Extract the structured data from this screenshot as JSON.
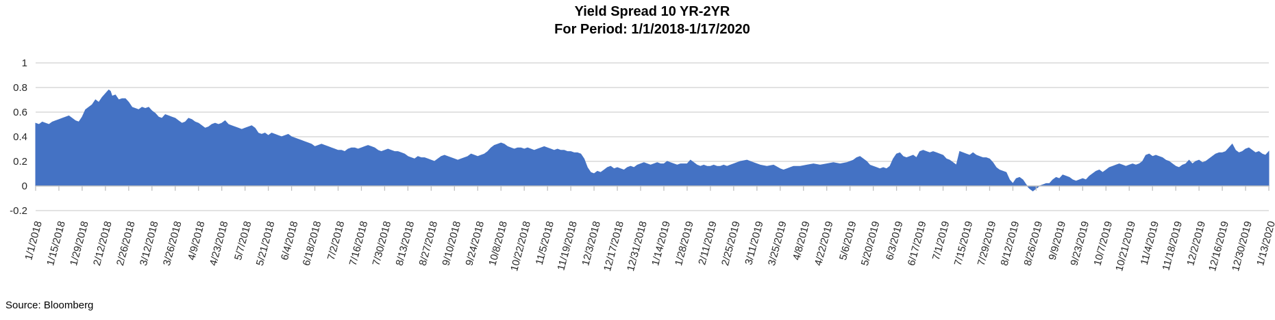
{
  "title": {
    "line1": "Yield Spread 10 YR-2YR",
    "line2": "For Period: 1/1/2018-1/17/2020"
  },
  "footer": {
    "source_label": "Source: Bloomberg"
  },
  "chart_data": {
    "type": "area",
    "title": "Yield Spread 10 YR-2YR For Period: 1/1/2018-1/17/2020",
    "fill_color": "#4472C4",
    "gridline_color": "#D8D8D8",
    "axis_color": "#BFBFBF",
    "label_color": "#262626",
    "grid": true,
    "legend": false,
    "y_axis": {
      "min": -0.2,
      "max": 1.0,
      "tick_step": 0.2,
      "tick_values": [
        1,
        0.8,
        0.6,
        0.4,
        0.2,
        0,
        -0.2
      ],
      "tick_labels": [
        "1",
        "0.8",
        "0.6",
        "0.4",
        "0.2",
        "0",
        "-0.2"
      ],
      "gridline_values": [
        1,
        0.8,
        0.6,
        0.4,
        0.2,
        -0.2
      ]
    },
    "x_axis": {
      "start_label": "1/1/2018",
      "end_label": "1/13/2020",
      "tick_interval_days": 14,
      "range_days": [
        0,
        742
      ],
      "tick_labels": [
        "1/1/2018",
        "1/15/2018",
        "1/29/2018",
        "2/12/2018",
        "2/26/2018",
        "3/12/2018",
        "3/26/2018",
        "4/9/2018",
        "4/23/2018",
        "5/7/2018",
        "5/21/2018",
        "6/4/2018",
        "6/18/2018",
        "7/2/2018",
        "7/16/2018",
        "7/30/2018",
        "8/13/2018",
        "8/27/2018",
        "9/10/2018",
        "9/24/2018",
        "10/8/2018",
        "10/22/2018",
        "11/5/2018",
        "11/19/2018",
        "12/3/2018",
        "12/17/2018",
        "12/31/2018",
        "1/14/2019",
        "1/28/2019",
        "2/11/2019",
        "2/25/2019",
        "3/11/2019",
        "3/25/2019",
        "4/8/2019",
        "4/22/2019",
        "5/6/2019",
        "5/20/2019",
        "6/3/2019",
        "6/17/2019",
        "7/1/2019",
        "7/15/2019",
        "7/29/2019",
        "8/12/2019",
        "8/26/2019",
        "9/9/2019",
        "9/23/2019",
        "10/7/2019",
        "10/21/2019",
        "11/4/2019",
        "11/18/2019",
        "12/2/2019",
        "12/16/2019",
        "12/30/2019",
        "1/13/2020"
      ]
    },
    "points": [
      [
        0,
        0.51
      ],
      [
        2,
        0.5
      ],
      [
        4,
        0.52
      ],
      [
        6,
        0.51
      ],
      [
        8,
        0.5
      ],
      [
        10,
        0.52
      ],
      [
        12,
        0.53
      ],
      [
        14,
        0.54
      ],
      [
        16,
        0.55
      ],
      [
        18,
        0.56
      ],
      [
        20,
        0.57
      ],
      [
        22,
        0.55
      ],
      [
        24,
        0.53
      ],
      [
        26,
        0.52
      ],
      [
        28,
        0.56
      ],
      [
        30,
        0.62
      ],
      [
        32,
        0.64
      ],
      [
        34,
        0.66
      ],
      [
        36,
        0.7
      ],
      [
        38,
        0.68
      ],
      [
        40,
        0.72
      ],
      [
        42,
        0.75
      ],
      [
        44,
        0.78
      ],
      [
        45,
        0.77
      ],
      [
        46,
        0.73
      ],
      [
        48,
        0.74
      ],
      [
        50,
        0.7
      ],
      [
        52,
        0.71
      ],
      [
        54,
        0.71
      ],
      [
        56,
        0.68
      ],
      [
        58,
        0.64
      ],
      [
        60,
        0.63
      ],
      [
        62,
        0.62
      ],
      [
        64,
        0.64
      ],
      [
        66,
        0.63
      ],
      [
        68,
        0.64
      ],
      [
        70,
        0.61
      ],
      [
        72,
        0.59
      ],
      [
        74,
        0.56
      ],
      [
        76,
        0.55
      ],
      [
        78,
        0.58
      ],
      [
        80,
        0.57
      ],
      [
        82,
        0.56
      ],
      [
        84,
        0.55
      ],
      [
        86,
        0.53
      ],
      [
        88,
        0.51
      ],
      [
        90,
        0.52
      ],
      [
        92,
        0.55
      ],
      [
        94,
        0.54
      ],
      [
        96,
        0.52
      ],
      [
        98,
        0.51
      ],
      [
        100,
        0.49
      ],
      [
        102,
        0.47
      ],
      [
        104,
        0.48
      ],
      [
        106,
        0.5
      ],
      [
        108,
        0.51
      ],
      [
        110,
        0.5
      ],
      [
        112,
        0.51
      ],
      [
        114,
        0.53
      ],
      [
        116,
        0.5
      ],
      [
        118,
        0.49
      ],
      [
        120,
        0.48
      ],
      [
        122,
        0.47
      ],
      [
        124,
        0.46
      ],
      [
        126,
        0.47
      ],
      [
        128,
        0.48
      ],
      [
        130,
        0.49
      ],
      [
        132,
        0.47
      ],
      [
        134,
        0.43
      ],
      [
        136,
        0.42
      ],
      [
        138,
        0.43
      ],
      [
        140,
        0.41
      ],
      [
        142,
        0.43
      ],
      [
        144,
        0.42
      ],
      [
        146,
        0.41
      ],
      [
        148,
        0.4
      ],
      [
        150,
        0.41
      ],
      [
        152,
        0.42
      ],
      [
        154,
        0.4
      ],
      [
        156,
        0.39
      ],
      [
        158,
        0.38
      ],
      [
        160,
        0.37
      ],
      [
        162,
        0.36
      ],
      [
        164,
        0.35
      ],
      [
        166,
        0.34
      ],
      [
        168,
        0.32
      ],
      [
        170,
        0.33
      ],
      [
        172,
        0.34
      ],
      [
        174,
        0.33
      ],
      [
        176,
        0.32
      ],
      [
        178,
        0.31
      ],
      [
        180,
        0.3
      ],
      [
        182,
        0.29
      ],
      [
        184,
        0.29
      ],
      [
        186,
        0.28
      ],
      [
        188,
        0.3
      ],
      [
        190,
        0.31
      ],
      [
        192,
        0.31
      ],
      [
        194,
        0.3
      ],
      [
        196,
        0.31
      ],
      [
        198,
        0.32
      ],
      [
        200,
        0.33
      ],
      [
        202,
        0.32
      ],
      [
        204,
        0.31
      ],
      [
        206,
        0.29
      ],
      [
        208,
        0.28
      ],
      [
        210,
        0.29
      ],
      [
        212,
        0.3
      ],
      [
        214,
        0.29
      ],
      [
        216,
        0.28
      ],
      [
        218,
        0.28
      ],
      [
        220,
        0.27
      ],
      [
        222,
        0.26
      ],
      [
        224,
        0.24
      ],
      [
        226,
        0.23
      ],
      [
        228,
        0.22
      ],
      [
        230,
        0.24
      ],
      [
        232,
        0.23
      ],
      [
        234,
        0.23
      ],
      [
        236,
        0.22
      ],
      [
        238,
        0.21
      ],
      [
        240,
        0.2
      ],
      [
        242,
        0.22
      ],
      [
        244,
        0.24
      ],
      [
        246,
        0.25
      ],
      [
        248,
        0.24
      ],
      [
        250,
        0.23
      ],
      [
        252,
        0.22
      ],
      [
        254,
        0.21
      ],
      [
        256,
        0.22
      ],
      [
        258,
        0.23
      ],
      [
        260,
        0.24
      ],
      [
        262,
        0.26
      ],
      [
        264,
        0.25
      ],
      [
        266,
        0.24
      ],
      [
        268,
        0.25
      ],
      [
        270,
        0.26
      ],
      [
        272,
        0.28
      ],
      [
        274,
        0.31
      ],
      [
        276,
        0.33
      ],
      [
        278,
        0.34
      ],
      [
        280,
        0.35
      ],
      [
        282,
        0.34
      ],
      [
        284,
        0.32
      ],
      [
        286,
        0.31
      ],
      [
        288,
        0.3
      ],
      [
        290,
        0.31
      ],
      [
        292,
        0.31
      ],
      [
        294,
        0.3
      ],
      [
        296,
        0.31
      ],
      [
        298,
        0.3
      ],
      [
        300,
        0.29
      ],
      [
        302,
        0.3
      ],
      [
        304,
        0.31
      ],
      [
        306,
        0.32
      ],
      [
        308,
        0.31
      ],
      [
        310,
        0.3
      ],
      [
        312,
        0.29
      ],
      [
        314,
        0.3
      ],
      [
        316,
        0.29
      ],
      [
        318,
        0.29
      ],
      [
        320,
        0.28
      ],
      [
        322,
        0.28
      ],
      [
        324,
        0.27
      ],
      [
        326,
        0.27
      ],
      [
        328,
        0.26
      ],
      [
        330,
        0.22
      ],
      [
        332,
        0.15
      ],
      [
        334,
        0.11
      ],
      [
        336,
        0.1
      ],
      [
        338,
        0.12
      ],
      [
        340,
        0.11
      ],
      [
        342,
        0.13
      ],
      [
        344,
        0.15
      ],
      [
        346,
        0.16
      ],
      [
        348,
        0.14
      ],
      [
        350,
        0.15
      ],
      [
        352,
        0.14
      ],
      [
        354,
        0.13
      ],
      [
        356,
        0.15
      ],
      [
        358,
        0.16
      ],
      [
        360,
        0.15
      ],
      [
        362,
        0.17
      ],
      [
        364,
        0.18
      ],
      [
        366,
        0.19
      ],
      [
        368,
        0.18
      ],
      [
        370,
        0.17
      ],
      [
        372,
        0.18
      ],
      [
        374,
        0.19
      ],
      [
        376,
        0.18
      ],
      [
        378,
        0.18
      ],
      [
        380,
        0.2
      ],
      [
        382,
        0.19
      ],
      [
        384,
        0.18
      ],
      [
        386,
        0.17
      ],
      [
        388,
        0.18
      ],
      [
        390,
        0.18
      ],
      [
        392,
        0.18
      ],
      [
        394,
        0.21
      ],
      [
        396,
        0.19
      ],
      [
        398,
        0.17
      ],
      [
        400,
        0.16
      ],
      [
        402,
        0.17
      ],
      [
        404,
        0.16
      ],
      [
        406,
        0.16
      ],
      [
        408,
        0.17
      ],
      [
        410,
        0.16
      ],
      [
        412,
        0.16
      ],
      [
        414,
        0.17
      ],
      [
        416,
        0.16
      ],
      [
        418,
        0.17
      ],
      [
        420,
        0.18
      ],
      [
        424,
        0.2
      ],
      [
        428,
        0.21
      ],
      [
        432,
        0.19
      ],
      [
        436,
        0.17
      ],
      [
        440,
        0.16
      ],
      [
        444,
        0.17
      ],
      [
        448,
        0.14
      ],
      [
        450,
        0.13
      ],
      [
        452,
        0.14
      ],
      [
        454,
        0.15
      ],
      [
        456,
        0.16
      ],
      [
        460,
        0.16
      ],
      [
        464,
        0.17
      ],
      [
        468,
        0.18
      ],
      [
        472,
        0.17
      ],
      [
        476,
        0.18
      ],
      [
        480,
        0.19
      ],
      [
        484,
        0.18
      ],
      [
        488,
        0.19
      ],
      [
        492,
        0.21
      ],
      [
        494,
        0.23
      ],
      [
        496,
        0.24
      ],
      [
        498,
        0.22
      ],
      [
        500,
        0.2
      ],
      [
        502,
        0.17
      ],
      [
        504,
        0.16
      ],
      [
        506,
        0.15
      ],
      [
        508,
        0.14
      ],
      [
        510,
        0.15
      ],
      [
        512,
        0.14
      ],
      [
        514,
        0.16
      ],
      [
        516,
        0.22
      ],
      [
        518,
        0.26
      ],
      [
        520,
        0.27
      ],
      [
        522,
        0.24
      ],
      [
        524,
        0.23
      ],
      [
        526,
        0.24
      ],
      [
        528,
        0.25
      ],
      [
        530,
        0.23
      ],
      [
        532,
        0.28
      ],
      [
        534,
        0.29
      ],
      [
        536,
        0.28
      ],
      [
        538,
        0.27
      ],
      [
        540,
        0.28
      ],
      [
        542,
        0.27
      ],
      [
        544,
        0.26
      ],
      [
        546,
        0.25
      ],
      [
        548,
        0.22
      ],
      [
        550,
        0.21
      ],
      [
        552,
        0.19
      ],
      [
        554,
        0.17
      ],
      [
        556,
        0.28
      ],
      [
        558,
        0.27
      ],
      [
        560,
        0.26
      ],
      [
        562,
        0.25
      ],
      [
        564,
        0.27
      ],
      [
        566,
        0.25
      ],
      [
        568,
        0.24
      ],
      [
        570,
        0.23
      ],
      [
        572,
        0.23
      ],
      [
        574,
        0.22
      ],
      [
        576,
        0.19
      ],
      [
        578,
        0.15
      ],
      [
        580,
        0.13
      ],
      [
        582,
        0.12
      ],
      [
        584,
        0.11
      ],
      [
        586,
        0.05
      ],
      [
        588,
        0.02
      ],
      [
        590,
        0.06
      ],
      [
        592,
        0.07
      ],
      [
        594,
        0.05
      ],
      [
        596,
        0.01
      ],
      [
        598,
        -0.02
      ],
      [
        600,
        -0.04
      ],
      [
        602,
        -0.02
      ],
      [
        604,
        0
      ],
      [
        606,
        0.01
      ],
      [
        608,
        0.02
      ],
      [
        610,
        0.02
      ],
      [
        612,
        0.05
      ],
      [
        614,
        0.07
      ],
      [
        616,
        0.06
      ],
      [
        618,
        0.09
      ],
      [
        620,
        0.08
      ],
      [
        622,
        0.07
      ],
      [
        624,
        0.05
      ],
      [
        626,
        0.04
      ],
      [
        628,
        0.05
      ],
      [
        630,
        0.06
      ],
      [
        632,
        0.05
      ],
      [
        634,
        0.08
      ],
      [
        636,
        0.1
      ],
      [
        638,
        0.12
      ],
      [
        640,
        0.13
      ],
      [
        642,
        0.11
      ],
      [
        644,
        0.13
      ],
      [
        646,
        0.15
      ],
      [
        648,
        0.16
      ],
      [
        650,
        0.17
      ],
      [
        652,
        0.18
      ],
      [
        654,
        0.17
      ],
      [
        656,
        0.16
      ],
      [
        658,
        0.17
      ],
      [
        660,
        0.18
      ],
      [
        662,
        0.17
      ],
      [
        664,
        0.18
      ],
      [
        666,
        0.2
      ],
      [
        668,
        0.25
      ],
      [
        670,
        0.26
      ],
      [
        672,
        0.24
      ],
      [
        674,
        0.25
      ],
      [
        676,
        0.24
      ],
      [
        678,
        0.23
      ],
      [
        680,
        0.21
      ],
      [
        682,
        0.2
      ],
      [
        684,
        0.18
      ],
      [
        686,
        0.16
      ],
      [
        688,
        0.15
      ],
      [
        690,
        0.17
      ],
      [
        692,
        0.18
      ],
      [
        694,
        0.21
      ],
      [
        696,
        0.18
      ],
      [
        698,
        0.2
      ],
      [
        700,
        0.21
      ],
      [
        702,
        0.19
      ],
      [
        704,
        0.2
      ],
      [
        706,
        0.22
      ],
      [
        708,
        0.24
      ],
      [
        710,
        0.26
      ],
      [
        712,
        0.27
      ],
      [
        714,
        0.27
      ],
      [
        716,
        0.28
      ],
      [
        718,
        0.31
      ],
      [
        720,
        0.34
      ],
      [
        722,
        0.29
      ],
      [
        724,
        0.27
      ],
      [
        726,
        0.28
      ],
      [
        728,
        0.3
      ],
      [
        730,
        0.31
      ],
      [
        732,
        0.29
      ],
      [
        734,
        0.27
      ],
      [
        736,
        0.28
      ],
      [
        738,
        0.26
      ],
      [
        740,
        0.25
      ],
      [
        742,
        0.28
      ]
    ]
  }
}
